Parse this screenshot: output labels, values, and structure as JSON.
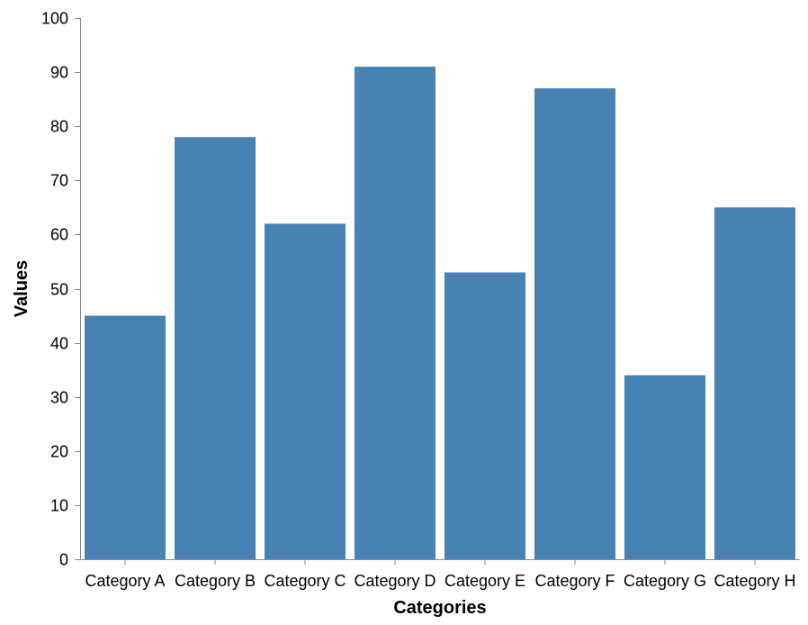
{
  "chart_data": {
    "type": "bar",
    "categories": [
      "Category A",
      "Category B",
      "Category C",
      "Category D",
      "Category E",
      "Category F",
      "Category G",
      "Category H"
    ],
    "values": [
      45,
      78,
      62,
      91,
      53,
      87,
      34,
      65
    ],
    "title": "",
    "xlabel": "Categories",
    "ylabel": "Values",
    "ylim": [
      0,
      100
    ],
    "yticks": [
      0,
      10,
      20,
      30,
      40,
      50,
      60,
      70,
      80,
      90,
      100
    ],
    "grid": false,
    "legend": "none",
    "bar_color": "#4682b4"
  }
}
